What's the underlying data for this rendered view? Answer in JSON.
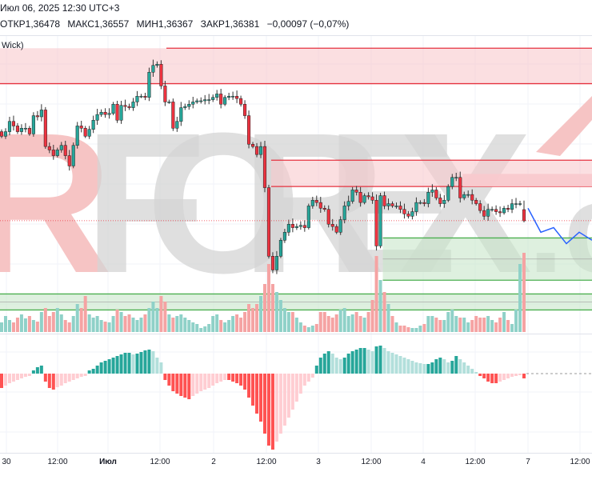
{
  "header": {
    "datetime": "Июл 06, 2025 12:30 UTC+3",
    "open": "ОТКР1,36478",
    "high": "МАКС1,36557",
    "low": "МИН1,36367",
    "close": "ЗАКР1,36381",
    "change": "−0,00097 (−0,07%)"
  },
  "indicator_legend": "Wick)",
  "watermark": "RFOREX.c",
  "colors": {
    "up": "#26a69a",
    "down": "#ef3340",
    "vol_up": "#8fd1c8",
    "vol_down": "#f5a3a3",
    "osc_up_strong": "#26a69a",
    "osc_up_weak": "#b2dfdb",
    "osc_down_strong": "#ff5252",
    "osc_down_weak": "#ffcdd2",
    "supply_zone": "#f8c9cd",
    "supply_line": "#e5323f",
    "demand_zone": "#c8e6c9",
    "demand_line": "#4caf50",
    "projection": "#2962ff",
    "watermark_gray": "#d4d4d4",
    "watermark_red": "#f6c4c4"
  },
  "chart_data": {
    "type": "candlestick",
    "note_series": "closes",
    "closes": [
      1.3712,
      1.3716,
      1.3725,
      1.3721,
      1.3716,
      1.3719,
      1.3719,
      1.3714,
      1.373,
      1.3729,
      1.3735,
      1.3703,
      1.37,
      1.3695,
      1.37,
      1.3704,
      1.3695,
      1.3686,
      1.3704,
      1.3721,
      1.3719,
      1.3712,
      1.3718,
      1.3726,
      1.3731,
      1.3733,
      1.3731,
      1.3732,
      1.374,
      1.3726,
      1.3739,
      1.3738,
      1.3737,
      1.3742,
      1.3747,
      1.3747,
      1.3746,
      1.3768,
      1.3774,
      1.3775,
      1.3756,
      1.3742,
      1.3742,
      1.3719,
      1.3725,
      1.3737,
      1.3738,
      1.374,
      1.3742,
      1.3743,
      1.3743,
      1.3744,
      1.3744,
      1.3746,
      1.3749,
      1.374,
      1.3746,
      1.3747,
      1.3747,
      1.3745,
      1.374,
      1.373,
      1.3705,
      1.3703,
      1.3696,
      1.3703,
      1.3667,
      1.3607,
      1.3595,
      1.3607,
      1.3621,
      1.3628,
      1.3635,
      1.3632,
      1.3633,
      1.3634,
      1.3632,
      1.3651,
      1.3656,
      1.3654,
      1.3649,
      1.3648,
      1.3635,
      1.3633,
      1.3628,
      1.3639,
      1.3651,
      1.3655,
      1.3665,
      1.3663,
      1.3654,
      1.366,
      1.3659,
      1.3656,
      1.3616,
      1.366,
      1.3651,
      1.3653,
      1.3651,
      1.3651,
      1.3648,
      1.3644,
      1.3642,
      1.3646,
      1.3654,
      1.3654,
      1.3653,
      1.3663,
      1.3665,
      1.3658,
      1.3653,
      1.3656,
      1.3668,
      1.3676,
      1.3676,
      1.3658,
      1.3661,
      1.3661,
      1.3656,
      1.3653,
      1.3647,
      1.3642,
      1.3648,
      1.3648,
      1.3646,
      1.3645,
      1.3649,
      1.3648,
      1.3653,
      1.3653,
      1.3653,
      1.3638
    ],
    "last_candle": {
      "open": 1.36478,
      "high": 1.36557,
      "low": 1.36367,
      "close": 1.36381
    },
    "volume": [
      12,
      20,
      15,
      12,
      18,
      22,
      17,
      20,
      15,
      13,
      25,
      30,
      20,
      25,
      30,
      22,
      15,
      12,
      20,
      35,
      30,
      45,
      22,
      18,
      20,
      15,
      13,
      12,
      20,
      28,
      25,
      20,
      22,
      18,
      15,
      18,
      22,
      30,
      38,
      30,
      45,
      38,
      22,
      18,
      20,
      22,
      18,
      15,
      12,
      10,
      5,
      7,
      10,
      20,
      22,
      15,
      12,
      15,
      20,
      22,
      18,
      25,
      35,
      30,
      35,
      45,
      60,
      85,
      60,
      50,
      40,
      30,
      25,
      25,
      18,
      12,
      8,
      6,
      8,
      10,
      25,
      25,
      20,
      18,
      22,
      28,
      30,
      20,
      22,
      25,
      20,
      18,
      25,
      40,
      95,
      65,
      50,
      35,
      20,
      12,
      8,
      8,
      6,
      5,
      5,
      8,
      10,
      20,
      20,
      18,
      15,
      15,
      25,
      28,
      20,
      18,
      18,
      12,
      15,
      20,
      18,
      18,
      20,
      15,
      12,
      18,
      25,
      15,
      10,
      28,
      85,
      99
    ],
    "oscillator": [
      -18,
      -15,
      -12,
      -10,
      -8,
      -6,
      -4,
      -3,
      4,
      8,
      10,
      -10,
      -18,
      -20,
      -17,
      -15,
      -12,
      -10,
      -8,
      -6,
      -4,
      -3,
      4,
      6,
      10,
      14,
      16,
      18,
      20,
      22,
      24,
      26,
      26,
      24,
      25,
      27,
      29,
      30,
      28,
      20,
      14,
      -8,
      -15,
      -22,
      -25,
      -28,
      -30,
      -32,
      -28,
      -25,
      -22,
      -20,
      -18,
      -15,
      -12,
      -10,
      -8,
      -8,
      -10,
      -12,
      -15,
      -20,
      -30,
      -40,
      -50,
      -60,
      -75,
      -90,
      -95,
      -85,
      -75,
      -65,
      -55,
      -45,
      -35,
      -25,
      -15,
      -10,
      -5,
      10,
      20,
      25,
      28,
      25,
      20,
      18,
      20,
      25,
      28,
      30,
      32,
      32,
      30,
      28,
      34,
      35,
      32,
      28,
      26,
      24,
      22,
      20,
      18,
      16,
      14,
      13,
      12,
      12,
      14,
      18,
      20,
      18,
      14,
      16,
      22,
      18,
      14,
      10,
      6,
      2,
      -3,
      -6,
      -10,
      -12,
      -12,
      -10,
      -8,
      -6,
      -4,
      -3,
      -2,
      -6
    ],
    "zones": [
      {
        "kind": "supply",
        "top": 1.3789,
        "bottom": 1.3758,
        "from_bar": 0
      },
      {
        "kind": "supply",
        "top": 1.3691,
        "bottom": 1.3668,
        "from_bar": 68
      },
      {
        "kind": "supply-inner",
        "top": 1.3679,
        "bottom": 1.3668,
        "from_bar": 116
      },
      {
        "kind": "demand",
        "top": 1.3623,
        "bottom": 1.3586,
        "from_bar": 96
      },
      {
        "kind": "demand",
        "top": 1.3574,
        "bottom": 1.356,
        "from_bar": 0
      }
    ],
    "projection": [
      1.3649,
      1.3628,
      1.3632,
      1.3618,
      1.3628,
      1.3621
    ],
    "x_ticks": [
      "30",
      "12:00",
      "Июл",
      "12:00",
      "2",
      "12:00",
      "3",
      "12:00",
      "4",
      "12:00",
      "7",
      "12:00"
    ],
    "grid": true
  }
}
